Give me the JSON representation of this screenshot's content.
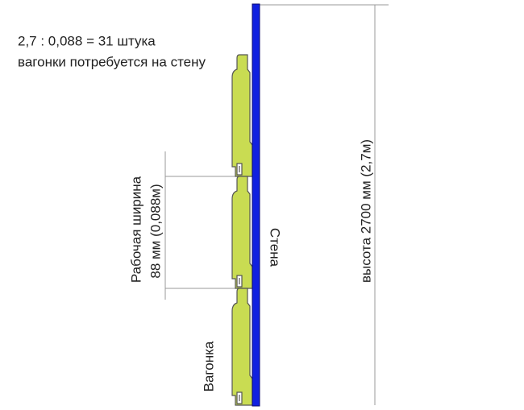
{
  "formula": {
    "line1": "2,7 : 0,088 =  31 штука",
    "line2": "вагонки потребуется на стену"
  },
  "labels": {
    "working_width": "Рабочая ширина",
    "width_value": "88 мм (0,088м)",
    "wall": "Стена",
    "height": "высота 2700 мм (2,7м)",
    "board": "Вагонка"
  }
}
